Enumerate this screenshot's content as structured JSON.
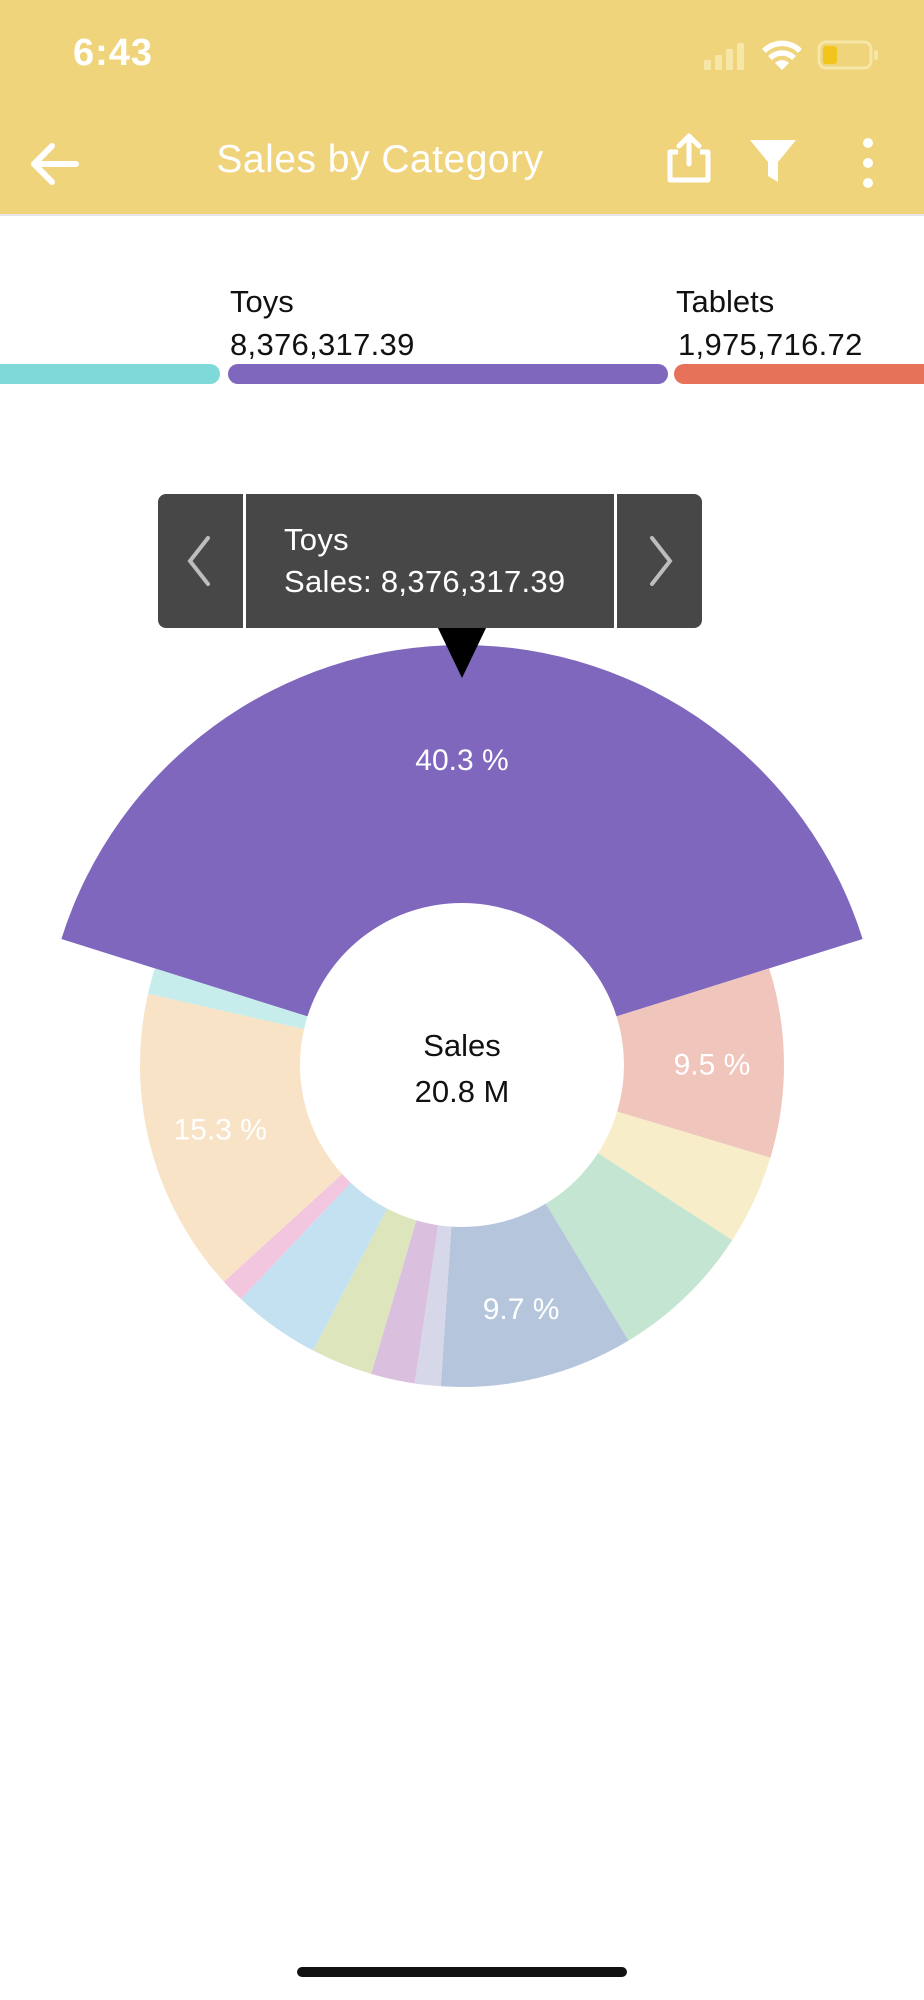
{
  "status_bar": {
    "time": "6:43",
    "icons": [
      "cellular-signal-icon",
      "wifi-icon",
      "battery-icon"
    ]
  },
  "header": {
    "title": "Sales by Category",
    "icons": [
      "back-arrow-icon",
      "share-icon",
      "filter-icon",
      "more-vertical-icon"
    ],
    "background": "#efd47c"
  },
  "legend": {
    "items": [
      {
        "label": "Toys",
        "value": "8,376,317.39",
        "color": "#7e67bd"
      },
      {
        "label": "Tablets",
        "value": "1,975,716.72",
        "color": "#e7725a"
      }
    ],
    "partial_item_color": "#7fd9d8"
  },
  "tooltip": {
    "category": "Toys",
    "value_text": "Sales: 8,376,317.39",
    "prev_icon": "chevron-left-icon",
    "next_icon": "chevron-right-icon"
  },
  "center": {
    "label": "Sales",
    "total": "20.8 M"
  },
  "chart_data": {
    "type": "pie",
    "title": "",
    "total_label": "Sales",
    "total": "20.8 M",
    "series": [
      {
        "value": 40.3,
        "label": "40.3 %",
        "color": "#7e67bd",
        "highlighted": true,
        "name": "Toys"
      },
      {
        "value": 9.5,
        "label": "9.5 %",
        "color": "#f0c6bc",
        "name": "Tablets"
      },
      {
        "value": 4.5,
        "label": "",
        "color": "#f8edc9"
      },
      {
        "value": 7.2,
        "label": "",
        "color": "#c4e5d1"
      },
      {
        "value": 9.7,
        "label": "9.7 %",
        "color": "#b5c6dc"
      },
      {
        "value": 1.3,
        "label": "",
        "color": "#d6d7e8"
      },
      {
        "value": 2.2,
        "label": "",
        "color": "#dac0de"
      },
      {
        "value": 3.1,
        "label": "",
        "color": "#dde5bd"
      },
      {
        "value": 4.4,
        "label": "",
        "color": "#c4e1f2"
      },
      {
        "value": 1.2,
        "label": "",
        "color": "#f1c6de"
      },
      {
        "value": 15.3,
        "label": "15.3 %",
        "color": "#f8e3c7"
      },
      {
        "value": 1.3,
        "label": "",
        "color": "#c6ecec"
      }
    ]
  }
}
